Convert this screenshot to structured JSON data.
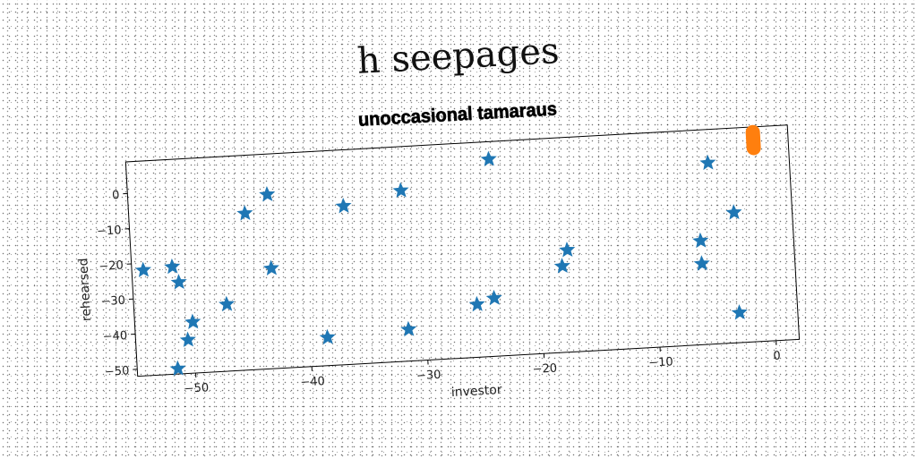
{
  "page": {
    "title": "h seepages"
  },
  "chart_data": {
    "type": "scatter",
    "title": "unoccasional tamaraus",
    "xlabel": "investor",
    "ylabel": "rehearsed",
    "xlim": [
      -55,
      2
    ],
    "ylim": [
      -52,
      9
    ],
    "xticks": [
      -50,
      -40,
      -30,
      -20,
      -10,
      0
    ],
    "xtick_labels": [
      "−50",
      "−40",
      "−30",
      "−20",
      "−10",
      "0"
    ],
    "yticks": [
      0,
      -10,
      -20,
      -30,
      -40,
      -50
    ],
    "ytick_labels": [
      "0",
      "−10",
      "−20",
      "−30",
      "−40",
      "−50"
    ],
    "grid": false,
    "series": [
      {
        "marker": "star",
        "color": "#1f77b4",
        "points": [
          [
            -54,
            -22
          ],
          [
            -51.5,
            -21.5
          ],
          [
            -51,
            -26
          ],
          [
            -50,
            -37.5
          ],
          [
            -50.5,
            -42.5
          ],
          [
            -51.5,
            -50.5
          ],
          [
            -47,
            -33
          ],
          [
            -45,
            -7.5
          ],
          [
            -43,
            -2.5
          ],
          [
            -43,
            -23.5
          ],
          [
            -36.5,
            -7
          ],
          [
            -38.5,
            -44
          ],
          [
            -31.5,
            -43
          ],
          [
            -31.5,
            -3.5
          ],
          [
            -23.8,
            4
          ],
          [
            -25.5,
            -37
          ],
          [
            -24,
            -35.5
          ],
          [
            -17.5,
            -23
          ],
          [
            -18,
            -27.5
          ],
          [
            -5,
            -0.5
          ],
          [
            -3,
            -15
          ],
          [
            -6,
            -22.5
          ],
          [
            -6,
            -29
          ],
          [
            -3,
            -43.5
          ]
        ]
      },
      {
        "marker": "thick-line",
        "color": "#ff7f0e",
        "points": [
          [
            -1,
            7.5
          ],
          [
            -1,
            6
          ],
          [
            -1,
            4.5
          ],
          [
            -1,
            3
          ]
        ]
      }
    ]
  }
}
